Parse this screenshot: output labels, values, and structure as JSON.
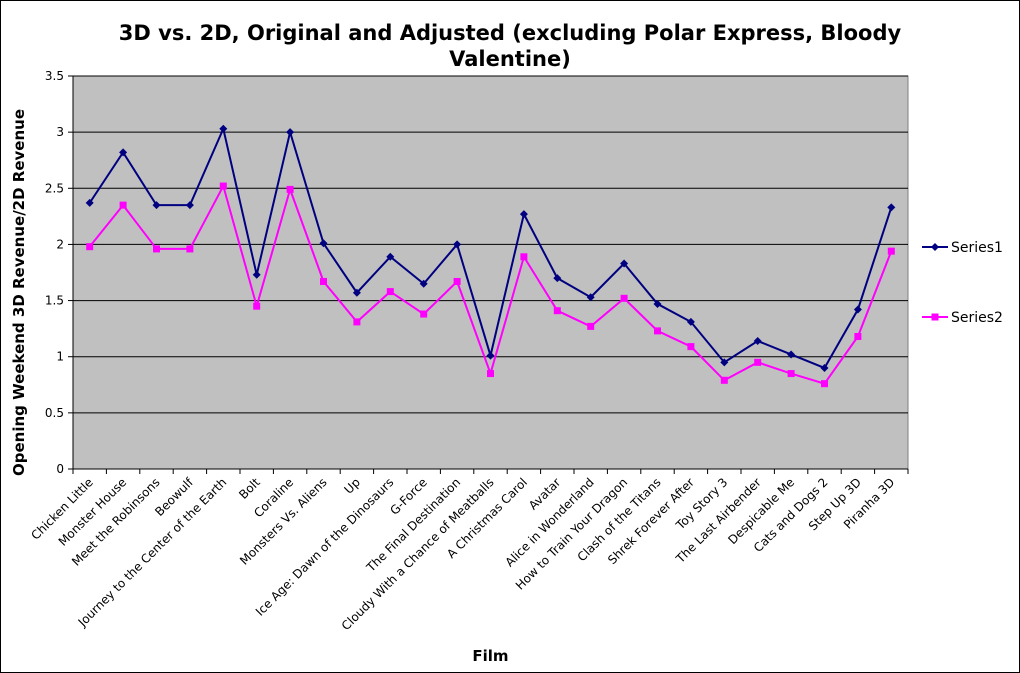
{
  "chart_data": {
    "type": "line",
    "title": "3D vs. 2D, Original and Adjusted (excluding Polar Express, Bloody Valentine)",
    "xlabel": "Film",
    "ylabel": "Opening Weekend 3D Revenue/2D Revenue",
    "ylim": [
      0,
      3.5
    ],
    "yticks": [
      "0",
      "0.5",
      "1",
      "1.5",
      "2",
      "2.5",
      "3",
      "3.5"
    ],
    "grid": true,
    "legend_position": "right",
    "colors": {
      "plot_bg": "#c0c0c0",
      "grid": "#000000",
      "series1": "#000080",
      "series2": "#ff00ff"
    },
    "categories": [
      "Chicken Little",
      "Monster House",
      "Meet the Robinsons",
      "Beowulf",
      "Journey to the Center of the Earth",
      "Bolt",
      "Coraline",
      "Monsters Vs. Aliens",
      "Up",
      "Ice Age: Dawn of the Dinosaurs",
      "G-Force",
      "The Final Destination",
      "Cloudy With a Chance of Meatballs",
      "A Christmas Carol",
      "Avatar",
      "Alice in Wonderland",
      "How to Train Your Dragon",
      "Clash of the Titans",
      "Shrek Forever After",
      "Toy Story 3",
      "The Last Airbender",
      "Despicable Me",
      "Cats and Dogs 2",
      "Step Up 3D",
      "Piranha 3D"
    ],
    "series": [
      {
        "name": "Series1",
        "marker": "diamond",
        "values": [
          2.37,
          2.82,
          2.35,
          2.35,
          3.03,
          1.73,
          3.0,
          2.01,
          1.57,
          1.89,
          1.65,
          2.0,
          1.01,
          2.27,
          1.7,
          1.53,
          1.83,
          1.47,
          1.31,
          0.95,
          1.14,
          1.02,
          0.9,
          1.42,
          2.33
        ]
      },
      {
        "name": "Series2",
        "marker": "square",
        "values": [
          1.98,
          2.35,
          1.96,
          1.96,
          2.52,
          1.45,
          2.49,
          1.67,
          1.31,
          1.58,
          1.38,
          1.67,
          0.85,
          1.89,
          1.41,
          1.27,
          1.52,
          1.23,
          1.09,
          0.79,
          0.95,
          0.85,
          0.76,
          1.18,
          1.94
        ]
      }
    ]
  }
}
